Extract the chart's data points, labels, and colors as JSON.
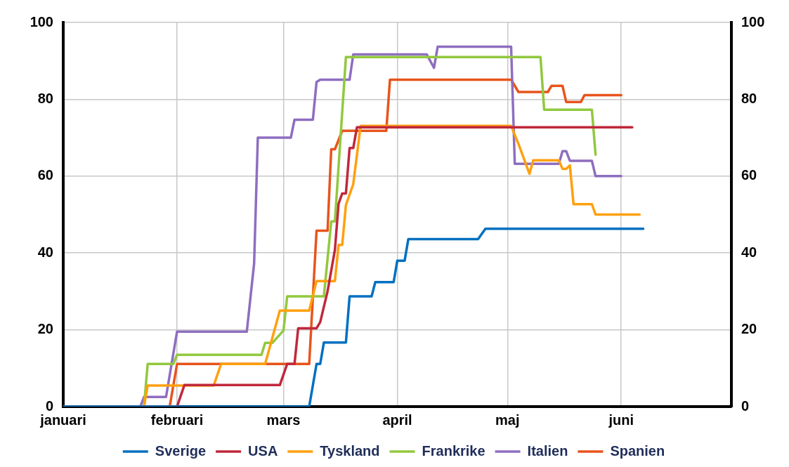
{
  "chart_data": {
    "type": "line",
    "xlim": [
      "--01-01",
      "--07-01"
    ],
    "xticks": [
      {
        "value": "--01-01",
        "label": "januari"
      },
      {
        "value": "--02-01",
        "label": "februari"
      },
      {
        "value": "--03-01",
        "label": "mars"
      },
      {
        "value": "--04-01",
        "label": "april"
      },
      {
        "value": "--05-01",
        "label": "maj"
      },
      {
        "value": "--06-01",
        "label": "juni"
      }
    ],
    "ylim": [
      0,
      100
    ],
    "yticks": [
      0,
      20,
      40,
      60,
      80,
      100
    ],
    "y2lim": [
      0,
      100
    ],
    "y2ticks": [
      0,
      20,
      40,
      60,
      80,
      100
    ],
    "grid": true,
    "legend": "bottom",
    "marker": "none",
    "line_style": "solid",
    "series": [
      {
        "name": "Sverige",
        "color": "#0070c0",
        "x": [
          "--01-01",
          "--03-08",
          "--03-10",
          "--03-11",
          "--03-12",
          "--03-18",
          "--03-19",
          "--03-25",
          "--03-26",
          "--03-31",
          "--04-01",
          "--04-03",
          "--04-04",
          "--04-23",
          "--04-25",
          "--06-07"
        ],
        "values": [
          0,
          0,
          11.1,
          11.1,
          16.7,
          16.7,
          28.7,
          28.7,
          32.4,
          32.4,
          38,
          38,
          43.6,
          43.6,
          46.3,
          46.3
        ]
      },
      {
        "name": "USA",
        "color": "#c0283c",
        "x": [
          "--01-01",
          "--02-01",
          "--02-03",
          "--02-29",
          "--03-02",
          "--03-04",
          "--03-05",
          "--03-10",
          "--03-11",
          "--03-13",
          "--03-15",
          "--03-16",
          "--03-17",
          "--03-18",
          "--03-19",
          "--03-20",
          "--03-21",
          "--06-04"
        ],
        "values": [
          0,
          0,
          5.6,
          5.6,
          11.1,
          11.1,
          20.4,
          20.4,
          22,
          30,
          40.8,
          52.8,
          55.5,
          55.5,
          67.3,
          67.3,
          72.7,
          72.7
        ]
      },
      {
        "name": "Tyskland",
        "color": "#ffa00e",
        "x": [
          "--01-01",
          "--01-23",
          "--01-24",
          "--02-11",
          "--02-13",
          "--02-25",
          "--02-29",
          "--03-08",
          "--03-10",
          "--03-15",
          "--03-16",
          "--03-17",
          "--03-18",
          "--03-20",
          "--03-22",
          "--05-02",
          "--05-04",
          "--05-07",
          "--05-08",
          "--05-15",
          "--05-16",
          "--05-17",
          "--05-18",
          "--05-19",
          "--05-24",
          "--05-25",
          "--06-06"
        ],
        "values": [
          0,
          0,
          5.5,
          5.5,
          11.1,
          11.1,
          25,
          25,
          32.7,
          32.7,
          42.1,
          42.1,
          52.5,
          57.9,
          73.1,
          73.1,
          68.4,
          60.6,
          64.1,
          64.1,
          61.9,
          61.9,
          62.8,
          52.7,
          52.7,
          50,
          50
        ]
      },
      {
        "name": "Frankrike",
        "color": "#92c83e",
        "x": [
          "--01-01",
          "--01-23",
          "--01-24",
          "--01-31",
          "--02-01",
          "--02-24",
          "--02-25",
          "--02-27",
          "--03-01",
          "--03-02",
          "--03-12",
          "--03-14",
          "--03-15",
          "--03-18",
          "--05-10",
          "--05-11",
          "--05-24",
          "--05-25"
        ],
        "values": [
          0,
          0,
          11.1,
          11.1,
          13.5,
          13.5,
          16.6,
          16.6,
          19.8,
          28.7,
          28.7,
          48.2,
          48.2,
          91,
          91,
          77.3,
          77.3,
          65.6
        ]
      },
      {
        "name": "Italien",
        "color": "#8e6ec0",
        "x": [
          "--01-01",
          "--01-22",
          "--01-23",
          "--01-29",
          "--02-01",
          "--02-20",
          "--02-22",
          "--02-23",
          "--03-03",
          "--03-04",
          "--03-09",
          "--03-10",
          "--03-11",
          "--03-19",
          "--03-20",
          "--04-09",
          "--04-11",
          "--04-12",
          "--05-02",
          "--05-03",
          "--05-15",
          "--05-16",
          "--05-17",
          "--05-18",
          "--05-24",
          "--05-25",
          "--06-01"
        ],
        "values": [
          0,
          0,
          2.5,
          2.5,
          19.5,
          19.5,
          37.3,
          70,
          70,
          74.7,
          74.7,
          84.5,
          85.1,
          85.1,
          91.7,
          91.7,
          88.2,
          93.7,
          93.7,
          63.2,
          63.2,
          66.5,
          66.5,
          64,
          64,
          60,
          60
        ]
      },
      {
        "name": "Spanien",
        "color": "#e8541c",
        "x": [
          "--01-01",
          "--01-30",
          "--02-01",
          "--03-08",
          "--03-10",
          "--03-13",
          "--03-14",
          "--03-15",
          "--03-17",
          "--03-29",
          "--03-30",
          "--05-02",
          "--05-04",
          "--05-12",
          "--05-13",
          "--05-16",
          "--05-17",
          "--05-21",
          "--05-22",
          "--06-01"
        ],
        "values": [
          0,
          0,
          11.1,
          11.1,
          45.8,
          45.8,
          67,
          67,
          71.8,
          71.8,
          85.1,
          85.1,
          81.9,
          81.9,
          83.5,
          83.5,
          79.3,
          79.3,
          81.1,
          81.1
        ]
      }
    ]
  }
}
